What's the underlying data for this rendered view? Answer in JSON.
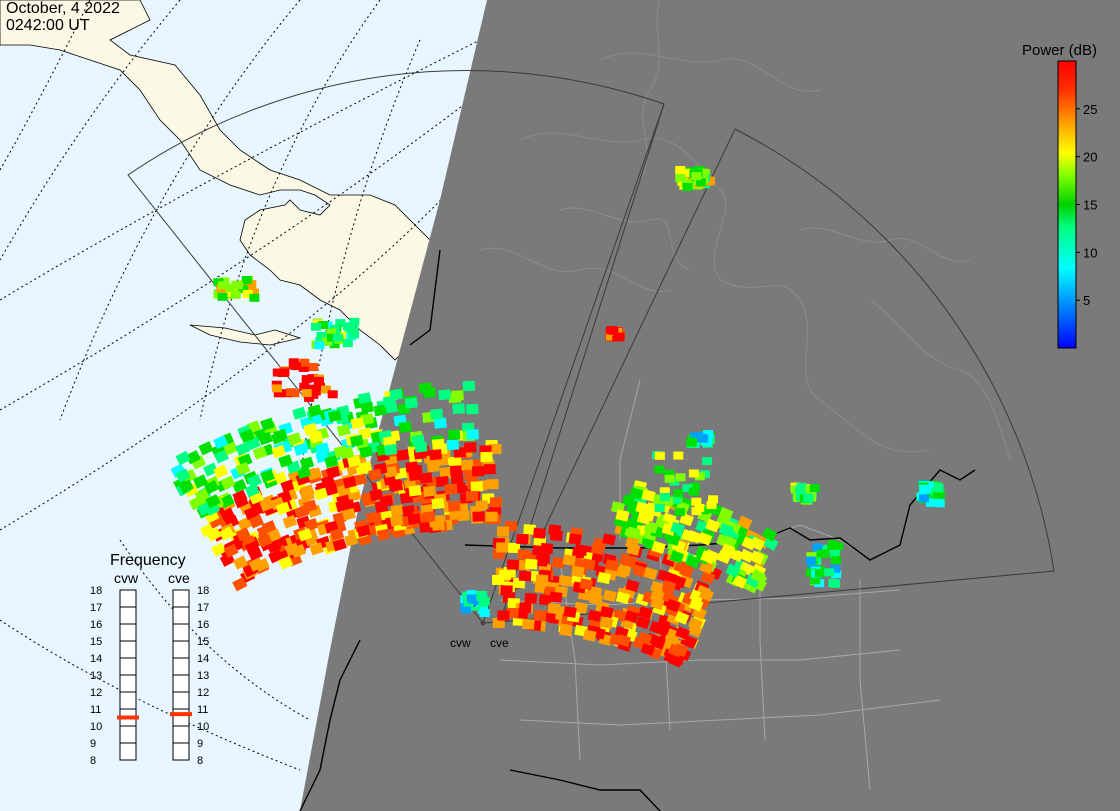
{
  "header": {
    "date": "October, 4 2022",
    "time": "0242:00 UT"
  },
  "colorbar": {
    "title": "Power (dB)",
    "ticks": [
      {
        "label": "25",
        "value": 25
      },
      {
        "label": "20",
        "value": 20
      },
      {
        "label": "15",
        "value": 15
      },
      {
        "label": "10",
        "value": 10
      },
      {
        "label": "5",
        "value": 5
      }
    ],
    "min": 0,
    "max": 30,
    "colors": [
      "#0000ff",
      "#00a0ff",
      "#00ffff",
      "#00ff80",
      "#00e000",
      "#80ff00",
      "#ffff00",
      "#ffa000",
      "#ff5000",
      "#ff0000"
    ]
  },
  "frequency_panel": {
    "title": "Frequency",
    "radars": [
      {
        "name": "cvw",
        "current_mhz": 10.5
      },
      {
        "name": "cve",
        "current_mhz": 10.7
      }
    ],
    "scale": [
      "18",
      "17",
      "16",
      "15",
      "14",
      "13",
      "12",
      "11",
      "10",
      "9",
      "8"
    ],
    "marker_color": "#ff3300"
  },
  "map": {
    "day_color": "#e8f6ff",
    "land_color": "#fbf8e6",
    "night_color": "#7a7a7a",
    "radar_labels": [
      {
        "name": "cvw"
      },
      {
        "name": "cve"
      }
    ]
  }
}
